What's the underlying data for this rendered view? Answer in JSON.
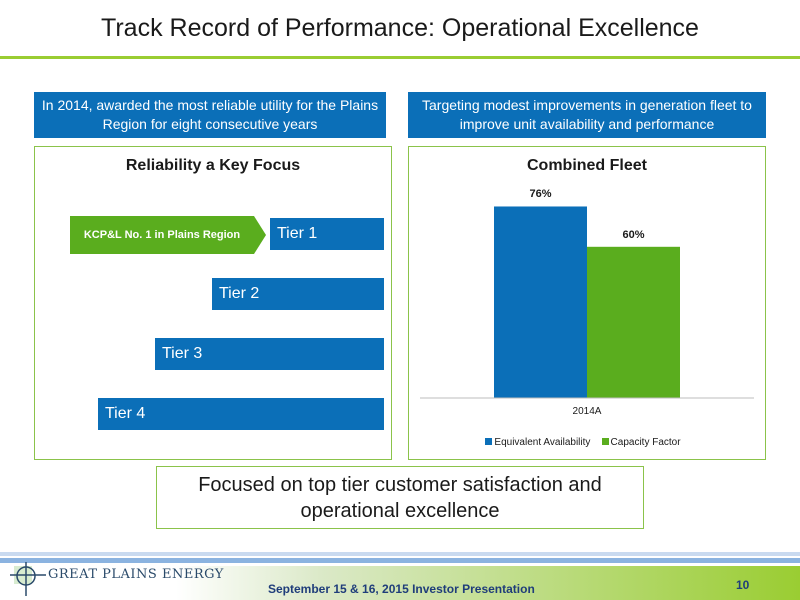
{
  "title": "Track Record of Performance: Operational Excellence",
  "banners": {
    "left": "In 2014, awarded the most reliable utility for the Plains Region for eight consecutive years",
    "right": "Targeting modest improvements in generation fleet to improve unit availability and performance"
  },
  "reliability": {
    "title": "Reliability a Key Focus",
    "arrow_label": "KCP&L No. 1 in Plains Region",
    "tiers": [
      "Tier 1",
      "Tier 2",
      "Tier 3",
      "Tier 4"
    ]
  },
  "chart_data": {
    "type": "bar",
    "title": "Combined Fleet",
    "categories": [
      "2014A"
    ],
    "series": [
      {
        "name": "Equivalent Availability",
        "values": [
          76
        ],
        "color": "#0b6fb8"
      },
      {
        "name": "Capacity Factor",
        "values": [
          60
        ],
        "color": "#5aad1e"
      }
    ],
    "data_labels": [
      "76%",
      "60%"
    ],
    "ylim": [
      0,
      100
    ],
    "legend": "bottom",
    "grid": false
  },
  "callout": "Focused on top tier customer satisfaction and operational excellence",
  "footer": {
    "logo": "GREAT PLAINS ENERGY",
    "text": "September 15 & 16, 2015 Investor Presentation",
    "page": "10"
  },
  "colors": {
    "accent_blue": "#0b6fb8",
    "accent_green": "#5aad1e",
    "rule_green": "#9acd32"
  }
}
